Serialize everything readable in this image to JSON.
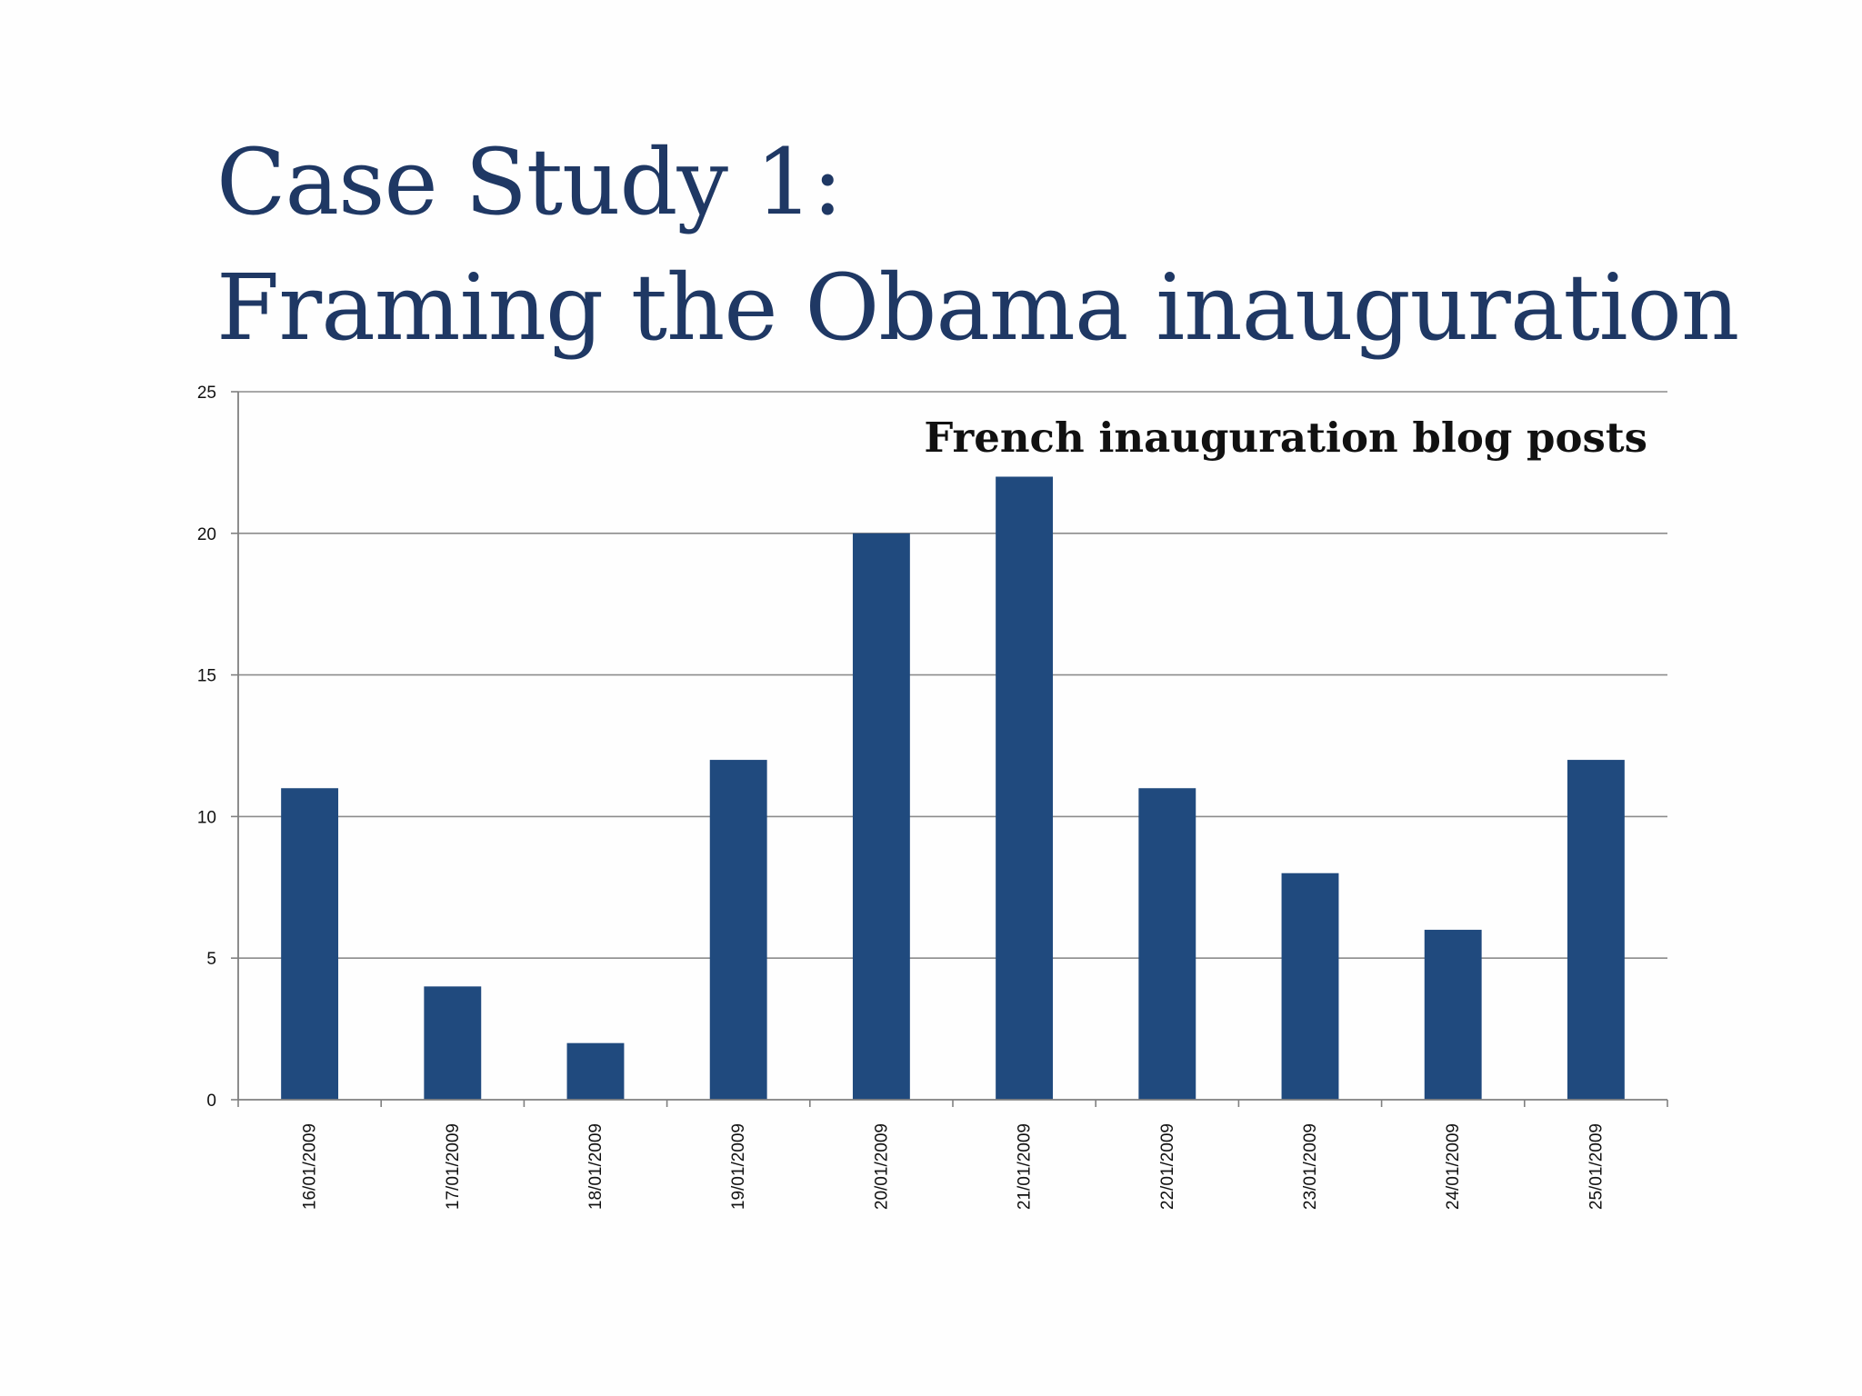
{
  "slide": {
    "title_line1": "Case Study 1:",
    "title_line2": "Framing the Obama inauguration"
  },
  "colors": {
    "title": "#1f3864",
    "bar": "#204a7e",
    "grid": "#8c8c8c",
    "axis": "#808080",
    "text": "#111111"
  },
  "chart_data": {
    "type": "bar",
    "title": "French inauguration blog posts",
    "xlabel": "",
    "ylabel": "",
    "categories": [
      "16/01/2009",
      "17/01/2009",
      "18/01/2009",
      "19/01/2009",
      "20/01/2009",
      "21/01/2009",
      "22/01/2009",
      "23/01/2009",
      "24/01/2009",
      "25/01/2009"
    ],
    "values": [
      11,
      4,
      2,
      12,
      20,
      22,
      11,
      8,
      6,
      12
    ],
    "ylim": [
      0,
      25
    ],
    "yticks": [
      0,
      5,
      10,
      15,
      20,
      25
    ],
    "grid": true,
    "legend": "none",
    "x_tick_rotation": "vertical"
  }
}
